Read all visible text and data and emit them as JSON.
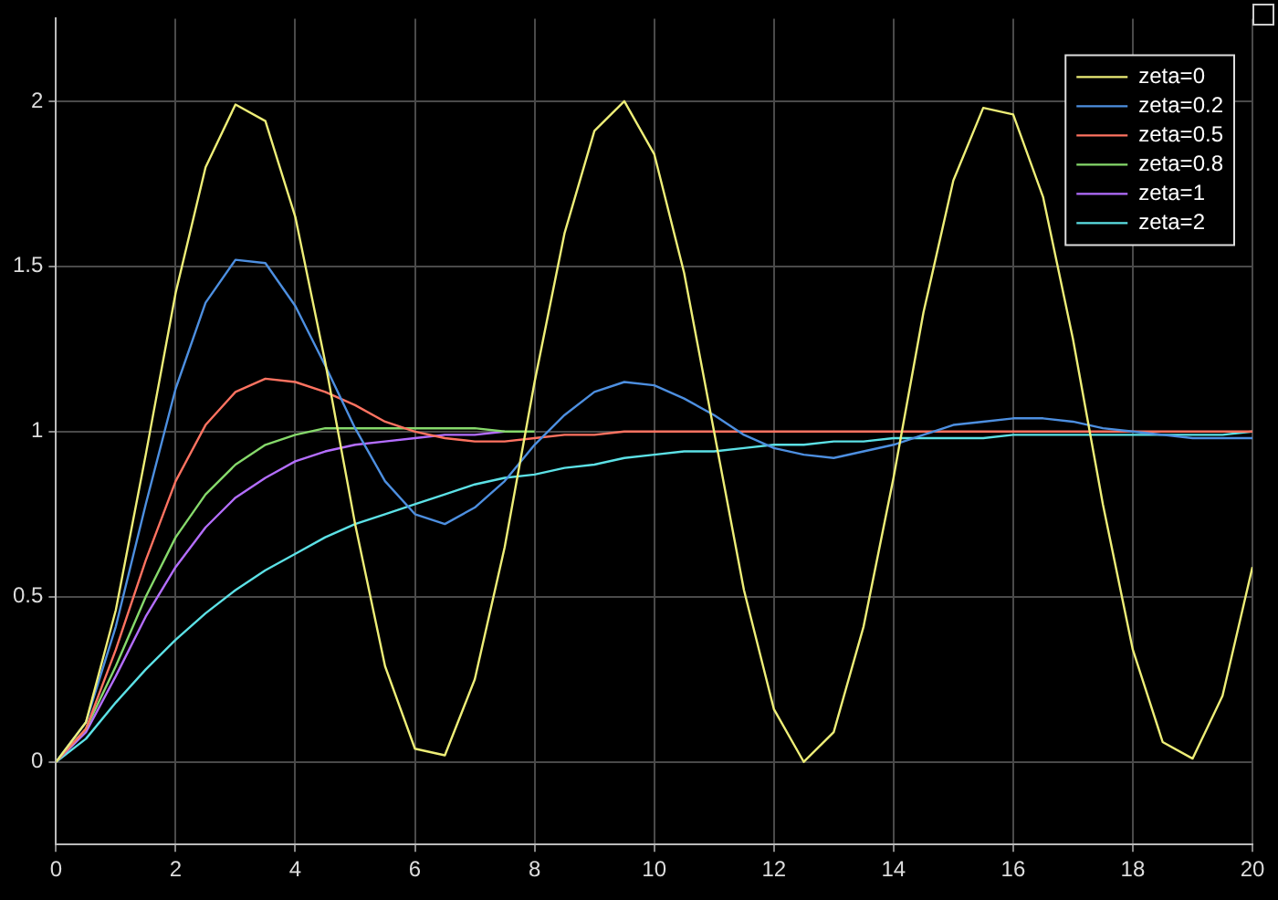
{
  "chart_data": {
    "type": "line",
    "x": [
      0,
      0.5,
      1,
      1.5,
      2,
      2.5,
      3,
      3.5,
      4,
      4.5,
      5,
      5.5,
      6,
      6.5,
      7,
      7.5,
      8,
      8.5,
      9,
      9.5,
      10,
      10.5,
      11,
      11.5,
      12,
      12.5,
      13,
      13.5,
      14,
      14.5,
      15,
      15.5,
      16,
      16.5,
      17,
      17.5,
      18,
      18.5,
      19,
      19.5,
      20
    ],
    "series": [
      {
        "name": "zeta=0",
        "color": "#eeee77",
        "values": [
          0,
          0.12,
          0.46,
          0.93,
          1.42,
          1.8,
          1.99,
          1.94,
          1.65,
          1.21,
          0.72,
          0.29,
          0.04,
          0.02,
          0.25,
          0.65,
          1.15,
          1.6,
          1.91,
          2.0,
          1.84,
          1.48,
          1.0,
          0.52,
          0.16,
          0.0,
          0.09,
          0.41,
          0.86,
          1.36,
          1.76,
          1.98,
          1.96,
          1.71,
          1.28,
          0.78,
          0.34,
          0.06,
          0.01,
          0.2,
          0.59
        ]
      },
      {
        "name": "zeta=0.2",
        "color": "#4d8fe0",
        "values": [
          0,
          0.12,
          0.41,
          0.78,
          1.13,
          1.39,
          1.52,
          1.51,
          1.38,
          1.2,
          1.01,
          0.85,
          0.75,
          0.72,
          0.77,
          0.85,
          0.96,
          1.05,
          1.12,
          1.15,
          1.14,
          1.1,
          1.05,
          0.99,
          0.95,
          0.93,
          0.92,
          0.94,
          0.96,
          0.99,
          1.02,
          1.03,
          1.04,
          1.04,
          1.03,
          1.01,
          1.0,
          0.99,
          0.98,
          0.98,
          0.98
        ]
      },
      {
        "name": "zeta=0.5",
        "color": "#ff7361",
        "values": [
          0,
          0.1,
          0.34,
          0.61,
          0.85,
          1.02,
          1.12,
          1.16,
          1.15,
          1.12,
          1.08,
          1.03,
          1.0,
          0.98,
          0.97,
          0.97,
          0.98,
          0.99,
          0.99,
          1.0,
          1.0,
          1.0,
          1.0,
          1.0,
          1.0,
          1.0,
          1.0,
          1.0,
          1.0,
          1.0,
          1.0,
          1.0,
          1.0,
          1.0,
          1.0,
          1.0,
          1.0,
          1.0,
          1.0,
          1.0,
          1.0
        ]
      },
      {
        "name": "zeta=0.8",
        "color": "#86d96b",
        "values": [
          0,
          0.1,
          0.29,
          0.5,
          0.68,
          0.81,
          0.9,
          0.96,
          0.99,
          1.01,
          1.01,
          1.01,
          1.01,
          1.01,
          1.01,
          1.0,
          1.0,
          null,
          null,
          null,
          null,
          null,
          null,
          null,
          null,
          null,
          null,
          null,
          null,
          null,
          null,
          null,
          null,
          null,
          null,
          null,
          null,
          null,
          null,
          null,
          null
        ]
      },
      {
        "name": "zeta=1",
        "color": "#b46eff",
        "values": [
          0,
          0.09,
          0.26,
          0.44,
          0.59,
          0.71,
          0.8,
          0.86,
          0.91,
          0.94,
          0.96,
          0.97,
          0.98,
          0.99,
          0.99,
          1.0,
          null,
          null,
          null,
          null,
          null,
          null,
          null,
          null,
          null,
          null,
          null,
          null,
          null,
          null,
          null,
          null,
          null,
          null,
          null,
          null,
          null,
          null,
          null,
          null,
          null
        ]
      },
      {
        "name": "zeta=2",
        "color": "#5ce1e6",
        "values": [
          0,
          0.07,
          0.18,
          0.28,
          0.37,
          0.45,
          0.52,
          0.58,
          0.63,
          0.68,
          0.72,
          0.75,
          0.78,
          0.81,
          0.84,
          0.86,
          0.87,
          0.89,
          0.9,
          0.92,
          0.93,
          0.94,
          0.94,
          0.95,
          0.96,
          0.96,
          0.97,
          0.97,
          0.98,
          0.98,
          0.98,
          0.98,
          0.99,
          0.99,
          0.99,
          0.99,
          0.99,
          0.99,
          0.99,
          0.99,
          1.0
        ]
      }
    ],
    "xlim": [
      0,
      20
    ],
    "xticks": [
      0,
      2,
      4,
      6,
      8,
      10,
      12,
      14,
      16,
      18,
      20
    ],
    "ylim": [
      -0.25,
      2.25
    ],
    "yticks": [
      0,
      0.5,
      1,
      1.5,
      2
    ],
    "grid": true,
    "legend": "top right",
    "marker": "none",
    "line_style": "solid"
  }
}
